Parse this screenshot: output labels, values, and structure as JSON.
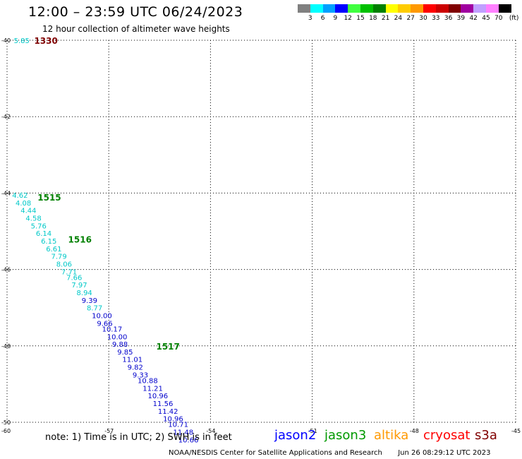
{
  "header": {
    "title": "12:00 – 23:59 UTC 06/24/2023",
    "subtitle": "12 hour collection of altimeter wave heights"
  },
  "legend": {
    "unit": "(ft)",
    "bins": [
      {
        "label": "3",
        "color": "#808080"
      },
      {
        "label": "6",
        "color": "#00ffff"
      },
      {
        "label": "9",
        "color": "#00a0ff"
      },
      {
        "label": "12",
        "color": "#0000ff"
      },
      {
        "label": "15",
        "color": "#40ff40"
      },
      {
        "label": "18",
        "color": "#00c000"
      },
      {
        "label": "21",
        "color": "#008000"
      },
      {
        "label": "24",
        "color": "#ffff00"
      },
      {
        "label": "27",
        "color": "#ffcc00"
      },
      {
        "label": "30",
        "color": "#ff9900"
      },
      {
        "label": "33",
        "color": "#ff0000"
      },
      {
        "label": "36",
        "color": "#cc0000"
      },
      {
        "label": "39",
        "color": "#800000"
      },
      {
        "label": "42",
        "color": "#a000a0"
      },
      {
        "label": "45",
        "color": "#c0a0ff"
      },
      {
        "label": "70",
        "color": "#ff80ff"
      },
      {
        "label": "",
        "color": "#000000"
      }
    ]
  },
  "axes": {
    "lat_ticks": [
      "-40",
      "-42",
      "-44",
      "-46",
      "-48",
      "-50"
    ],
    "lon_ticks": [
      "-60",
      "-57",
      "-54",
      "-51",
      "-48",
      "-45"
    ]
  },
  "track_colors": {
    "cyan": "#00c8c8",
    "blue": "#0000cc"
  },
  "time_labels": [
    {
      "text": "1330",
      "color": "#800000",
      "lat": -40.0,
      "lon": -59.2
    },
    {
      "text": "1515",
      "color": "#008000",
      "lat": -44.1,
      "lon": -59.1
    },
    {
      "text": "1516",
      "color": "#008000",
      "lat": -45.2,
      "lon": -58.2
    },
    {
      "text": "1517",
      "color": "#008000",
      "lat": -48.0,
      "lon": -55.6
    }
  ],
  "observations": [
    {
      "value": "5.85",
      "color": "cyan",
      "lat": -40.0,
      "lon": -59.8
    },
    {
      "value": "4.62",
      "color": "cyan",
      "lat": -44.05,
      "lon": -59.85
    },
    {
      "value": "4.08",
      "color": "cyan",
      "lat": -44.25,
      "lon": -59.75
    },
    {
      "value": "4.44",
      "color": "cyan",
      "lat": -44.45,
      "lon": -59.6
    },
    {
      "value": "4.58",
      "color": "cyan",
      "lat": -44.65,
      "lon": -59.45
    },
    {
      "value": "5.76",
      "color": "cyan",
      "lat": -44.85,
      "lon": -59.3
    },
    {
      "value": "6.14",
      "color": "cyan",
      "lat": -45.05,
      "lon": -59.15
    },
    {
      "value": "6.15",
      "color": "cyan",
      "lat": -45.25,
      "lon": -59.0
    },
    {
      "value": "6.61",
      "color": "cyan",
      "lat": -45.45,
      "lon": -58.85
    },
    {
      "value": "7.79",
      "color": "cyan",
      "lat": -45.65,
      "lon": -58.7
    },
    {
      "value": "8.06",
      "color": "cyan",
      "lat": -45.85,
      "lon": -58.55
    },
    {
      "value": "7.71",
      "color": "cyan",
      "lat": -46.05,
      "lon": -58.4
    },
    {
      "value": "7.66",
      "color": "cyan",
      "lat": -46.2,
      "lon": -58.25
    },
    {
      "value": "7.97",
      "color": "cyan",
      "lat": -46.4,
      "lon": -58.1
    },
    {
      "value": "8.94",
      "color": "cyan",
      "lat": -46.6,
      "lon": -57.95
    },
    {
      "value": "9.39",
      "color": "blue",
      "lat": -46.8,
      "lon": -57.8
    },
    {
      "value": "8.77",
      "color": "cyan",
      "lat": -47.0,
      "lon": -57.65
    },
    {
      "value": "10.00",
      "color": "blue",
      "lat": -47.2,
      "lon": -57.5
    },
    {
      "value": "9.66",
      "color": "blue",
      "lat": -47.4,
      "lon": -57.35
    },
    {
      "value": "10.17",
      "color": "blue",
      "lat": -47.55,
      "lon": -57.2
    },
    {
      "value": "10.00",
      "color": "blue",
      "lat": -47.75,
      "lon": -57.05
    },
    {
      "value": "9.88",
      "color": "blue",
      "lat": -47.95,
      "lon": -56.9
    },
    {
      "value": "9.85",
      "color": "blue",
      "lat": -48.15,
      "lon": -56.75
    },
    {
      "value": "11.01",
      "color": "blue",
      "lat": -48.35,
      "lon": -56.6
    },
    {
      "value": "9.82",
      "color": "blue",
      "lat": -48.55,
      "lon": -56.45
    },
    {
      "value": "9.33",
      "color": "blue",
      "lat": -48.75,
      "lon": -56.3
    },
    {
      "value": "10.88",
      "color": "blue",
      "lat": -48.9,
      "lon": -56.15
    },
    {
      "value": "11.21",
      "color": "blue",
      "lat": -49.1,
      "lon": -56.0
    },
    {
      "value": "10.96",
      "color": "blue",
      "lat": -49.3,
      "lon": -55.85
    },
    {
      "value": "11.56",
      "color": "blue",
      "lat": -49.5,
      "lon": -55.7
    },
    {
      "value": "11.42",
      "color": "blue",
      "lat": -49.7,
      "lon": -55.55
    },
    {
      "value": "10.96",
      "color": "blue",
      "lat": -49.9,
      "lon": -55.4
    },
    {
      "value": "10.71",
      "color": "blue",
      "lat": -50.05,
      "lon": -55.25
    },
    {
      "value": "11.48",
      "color": "blue",
      "lat": -50.25,
      "lon": -55.1
    },
    {
      "value": "10.66",
      "color": "blue",
      "lat": -50.45,
      "lon": -54.95
    }
  ],
  "footer": {
    "note": "note:  1) Time is in UTC;  2) SWH is in feet",
    "credit": "NOAA/NESDIS Center for Satellite Applications and Research",
    "timestamp": "Jun 26 08:29:12 UTC 2023",
    "satellites": [
      {
        "label": "jason2",
        "color": "#0000ff"
      },
      {
        "label": "jason3",
        "color": "#009900"
      },
      {
        "label": "altika",
        "color": "#ff9900"
      },
      {
        "label": "cryosat",
        "color": "#ff0000"
      },
      {
        "label": "s3a",
        "color": "#800000"
      }
    ]
  }
}
